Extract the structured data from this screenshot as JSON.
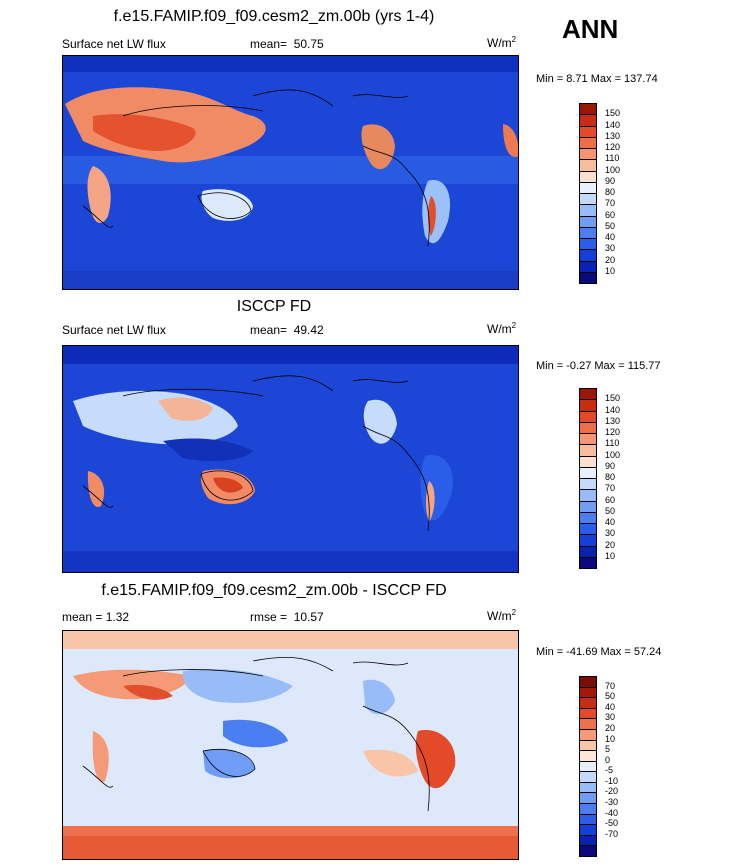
{
  "season": "ANN",
  "colors": {
    "abs_scale": [
      "#0a0a7a",
      "#0a22b0",
      "#1540d8",
      "#2a5ee8",
      "#4b7ef0",
      "#6f9cf5",
      "#97bcf8",
      "#c3daf9",
      "#e8f0fb",
      "#fbe0ce",
      "#f8bd9b",
      "#f59670",
      "#ef6e48",
      "#e24a28",
      "#c72c14",
      "#9a1606"
    ],
    "diff_scale": [
      "#0a0a7a",
      "#0a22b0",
      "#1540d8",
      "#2a5ee8",
      "#4b7ef0",
      "#6f9cf5",
      "#97bcf8",
      "#c3daf9",
      "#e6eefb",
      "#fbe6d8",
      "#f8c5a8",
      "#f59a76",
      "#ef704c",
      "#e24a28",
      "#c72c14",
      "#a4180a",
      "#7a0e04"
    ]
  },
  "chart_data": [
    {
      "type": "heatmap",
      "title": "f.e15.FAMIP.f09_f09.cesm2_zm.00b (yrs 1-4)",
      "left_label": "Surface net LW flux",
      "mean_label": "mean=",
      "mean_value": "50.75",
      "units_base": "W/m",
      "units_sup": "2",
      "minmax": "Min =   8.71 Max = 137.74",
      "min": 8.71,
      "max": 137.74,
      "colorbar_labels": [
        "150",
        "140",
        "130",
        "120",
        "110",
        "100",
        "90",
        "80",
        "70",
        "60",
        "50",
        "40",
        "30",
        "20",
        "10"
      ],
      "colorbar_palette": "abs_scale"
    },
    {
      "type": "heatmap",
      "title": "ISCCP FD",
      "left_label": "Surface net LW flux",
      "mean_label": "mean=",
      "mean_value": "49.42",
      "units_base": "W/m",
      "units_sup": "2",
      "minmax": "Min =  -0.27 Max = 115.77",
      "min": -0.27,
      "max": 115.77,
      "colorbar_labels": [
        "150",
        "140",
        "130",
        "120",
        "110",
        "100",
        "90",
        "80",
        "70",
        "60",
        "50",
        "40",
        "30",
        "20",
        "10"
      ],
      "colorbar_palette": "abs_scale"
    },
    {
      "type": "heatmap",
      "title": "f.e15.FAMIP.f09_f09.cesm2_zm.00b - ISCCP FD",
      "left_label": "mean =   1.32",
      "mean_label": "rmse =",
      "mean_value": "10.57",
      "units_base": "W/m",
      "units_sup": "2",
      "minmax": "Min = -41.69 Max =  57.24",
      "min": -41.69,
      "max": 57.24,
      "colorbar_labels": [
        "70",
        "50",
        "40",
        "30",
        "20",
        "10",
        "5",
        "0",
        "-5",
        "-10",
        "-20",
        "-30",
        "-40",
        "-50",
        "-70"
      ],
      "colorbar_palette": "diff_scale"
    }
  ]
}
